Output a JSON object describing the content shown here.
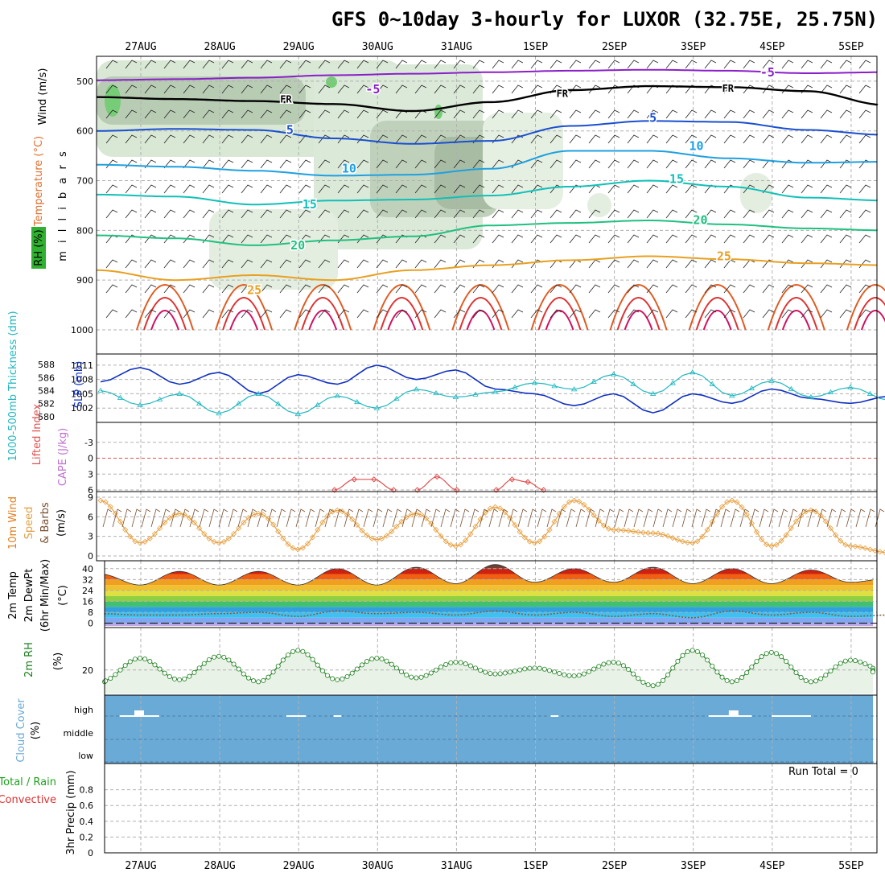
{
  "title": "GFS 0~10day 3-hourly for LUXOR (32.75E, 25.75N)",
  "run_total": "Run Total = 0",
  "colors": {
    "temp_purple": "#8a1fc8",
    "temp_blue": "#1a4fd0",
    "temp_cyan": "#1fa0e0",
    "temp_teal": "#10c0b8",
    "temp_green": "#20c080",
    "temp_orange": "#e8a020",
    "temp_red": "#e03030",
    "slp": "#1030c0",
    "thickness": "#20b8c0",
    "cloud": "#6aaad6",
    "rh_fill": "#e8f2e6",
    "rh_line": "#208020",
    "wind_line": "#e8a040",
    "li_line": "#e05050"
  },
  "chart_data": [
    {
      "type": "line",
      "panel": "upper-air cross-section",
      "ylabel": "m i l l i b a r s",
      "y_ticks": [
        "500",
        "600",
        "700",
        "800",
        "900",
        "1000"
      ],
      "ylim": [
        450,
        1000
      ],
      "x_dates": [
        "27AUG",
        "28AUG",
        "29AUG",
        "30AUG",
        "31AUG",
        "1SEP",
        "2SEP",
        "3SEP",
        "4SEP",
        "5SEP"
      ],
      "legend": {
        "rh": "RH (%)",
        "temp": "Temperature (°C)",
        "wind": "Wind (m/s)"
      },
      "isotherm_labels": [
        {
          "text": "-5",
          "day": 8.5,
          "p": 482
        },
        {
          "text": "-5",
          "day": 3.5,
          "p": 516
        },
        {
          "text": "FR",
          "day": 2.4,
          "p": 535
        },
        {
          "text": "FR",
          "day": 5.9,
          "p": 524
        },
        {
          "text": "FR",
          "day": 8.0,
          "p": 513
        },
        {
          "text": "5",
          "day": 2.45,
          "p": 598
        },
        {
          "text": "5",
          "day": 7.05,
          "p": 574
        },
        {
          "text": "10",
          "day": 3.2,
          "p": 676
        },
        {
          "text": "10",
          "day": 7.6,
          "p": 630
        },
        {
          "text": "15",
          "day": 2.7,
          "p": 748
        },
        {
          "text": "15",
          "day": 7.35,
          "p": 697
        },
        {
          "text": "20",
          "day": 2.55,
          "p": 830
        },
        {
          "text": "20",
          "day": 7.65,
          "p": 779
        },
        {
          "text": "25",
          "day": 2.0,
          "p": 920
        },
        {
          "text": "25",
          "day": 7.95,
          "p": 852
        }
      ],
      "isotherms": [
        {
          "name": "-5",
          "color": "#8a1fc8",
          "days": [
            0,
            1,
            2,
            3,
            4,
            5,
            6,
            7,
            8,
            9,
            10
          ],
          "p": [
            498,
            496,
            493,
            488,
            485,
            482,
            479,
            477,
            479,
            484,
            482
          ]
        },
        {
          "name": "FR",
          "color": "#000000",
          "days": [
            0,
            1,
            2,
            3,
            4,
            5,
            6,
            7,
            8,
            9,
            10
          ],
          "p": [
            532,
            536,
            540,
            546,
            560,
            542,
            518,
            510,
            512,
            520,
            548
          ]
        },
        {
          "name": "5",
          "color": "#1a4fd0",
          "days": [
            0,
            1,
            2,
            3,
            4,
            5,
            6,
            7,
            8,
            9,
            10
          ],
          "p": [
            600,
            596,
            598,
            615,
            626,
            620,
            590,
            580,
            582,
            598,
            608
          ]
        },
        {
          "name": "10",
          "color": "#1fa0e0",
          "days": [
            0,
            1,
            2,
            3,
            4,
            5,
            6,
            7,
            8,
            9,
            10
          ],
          "p": [
            668,
            672,
            680,
            690,
            688,
            676,
            640,
            640,
            655,
            664,
            662
          ]
        },
        {
          "name": "15",
          "color": "#10c0b8",
          "days": [
            0,
            1,
            2,
            3,
            4,
            5,
            6,
            7,
            8,
            9,
            10
          ],
          "p": [
            728,
            732,
            748,
            740,
            738,
            730,
            712,
            700,
            712,
            734,
            740
          ]
        },
        {
          "name": "20",
          "color": "#20c080",
          "days": [
            0,
            1,
            2,
            3,
            4,
            5,
            6,
            7,
            8,
            9,
            10
          ],
          "p": [
            810,
            816,
            830,
            820,
            812,
            790,
            785,
            780,
            788,
            796,
            800
          ]
        },
        {
          "name": "25",
          "color": "#e8a020",
          "days": [
            0,
            1,
            2,
            3,
            4,
            5,
            6,
            7,
            8,
            9,
            10
          ],
          "p": [
            880,
            900,
            890,
            900,
            880,
            870,
            860,
            852,
            858,
            866,
            870
          ]
        }
      ]
    },
    {
      "type": "line",
      "panel": "thickness and SLP",
      "left_label": "1000-500mb Thickness (dm)",
      "right_label": "SLP (mb)",
      "left_ticks": [
        "588",
        "586",
        "584",
        "582",
        "580"
      ],
      "right_ticks": [
        "1011",
        "1008",
        "1005",
        "1002"
      ],
      "ylim_slp": [
        999.5,
        1012.5
      ],
      "ylim_thickness": [
        579.5,
        589
      ],
      "days": [
        0,
        0.5,
        1,
        1.5,
        2,
        2.5,
        3,
        3.5,
        4,
        4.5,
        5,
        5.5,
        6,
        6.5,
        7,
        7.5,
        8,
        8.5,
        9,
        9.5,
        10
      ],
      "slp": [
        1007.5,
        1010.5,
        1007.0,
        1009.5,
        1005.0,
        1009.0,
        1007.0,
        1011.0,
        1008.0,
        1010.0,
        1006.0,
        1005.0,
        1002.5,
        1005.0,
        1001.0,
        1005.0,
        1003.0,
        1006.0,
        1004.0,
        1003.0,
        1004.5
      ],
      "thickness": [
        584.0,
        581.8,
        583.5,
        580.5,
        583.5,
        580.4,
        583.2,
        581.3,
        584.2,
        583.0,
        583.8,
        585.2,
        584.2,
        586.5,
        583.5,
        586.8,
        583.2,
        585.5,
        583.0,
        584.5,
        582.5
      ]
    },
    {
      "type": "line",
      "panel": "lifted index and CAPE",
      "left_label": "Lifted Index",
      "right_label": "CAPE (J/kg)",
      "y_ticks": [
        "-3",
        "0",
        "3",
        "6"
      ],
      "ylim": [
        -6,
        6
      ],
      "li_segments": [
        {
          "days": [
            2.25,
            2.5,
            2.75,
            3.0
          ],
          "values": [
            6.0,
            4.0,
            4.0,
            6.0
          ]
        },
        {
          "days": [
            3.3,
            3.55,
            3.8
          ],
          "values": [
            6.0,
            3.5,
            6.0
          ]
        },
        {
          "days": [
            4.3,
            4.5,
            4.7,
            4.9
          ],
          "values": [
            6.0,
            4.0,
            4.5,
            6.0
          ]
        }
      ]
    },
    {
      "type": "line",
      "panel": "10m wind",
      "ylabel": "10m Wind Speed & Barbs (m/s)",
      "y_ticks": [
        "9",
        "6",
        "3",
        "0"
      ],
      "ylim": [
        0,
        9
      ],
      "days": [
        0,
        0.5,
        1,
        1.5,
        2,
        2.5,
        3,
        3.5,
        4,
        4.5,
        5,
        5.5,
        6,
        6.5,
        7,
        7.5,
        8,
        8.5,
        9,
        9.5,
        10
      ],
      "speed": [
        8.5,
        2.0,
        6.5,
        2.0,
        6.5,
        1.0,
        7.0,
        2.5,
        6.5,
        1.5,
        7.5,
        2.0,
        8.5,
        4.0,
        3.5,
        2.0,
        8.5,
        1.5,
        7.0,
        1.5,
        0.5
      ]
    },
    {
      "type": "area",
      "panel": "2m temperature and dewpoint",
      "ylabel": "2m Temp 2m DewPt (6hr Min/Max) (°C)",
      "y_ticks": [
        "40",
        "32",
        "24",
        "16",
        "8",
        "0"
      ],
      "ylim": [
        -2,
        44
      ],
      "days": [
        0,
        0.5,
        1,
        1.5,
        2,
        2.5,
        3,
        3.5,
        4,
        4.5,
        5,
        5.5,
        6,
        6.5,
        7,
        7.5,
        8,
        8.5,
        9,
        9.5,
        10
      ],
      "temp": [
        36,
        28,
        38,
        28,
        38,
        28,
        40,
        28,
        41,
        29,
        43,
        30,
        40,
        30,
        41,
        29,
        40,
        29,
        39,
        30,
        33
      ],
      "dewpt": [
        7,
        6,
        6,
        7,
        8,
        5,
        9,
        7,
        8,
        6,
        9,
        6,
        8,
        5,
        7,
        4,
        9,
        6,
        8,
        5,
        6
      ]
    },
    {
      "type": "area",
      "panel": "2m relative humidity",
      "ylabel": "2m RH (%)",
      "y_ticks": [
        "20"
      ],
      "ylim": [
        8,
        40
      ],
      "days": [
        0,
        0.5,
        1,
        1.5,
        2,
        2.5,
        3,
        3.5,
        4,
        4.5,
        5,
        5.5,
        6,
        6.5,
        7,
        7.5,
        8,
        8.5,
        9,
        9.5,
        10
      ],
      "rh": [
        14,
        26,
        15,
        27,
        14,
        30,
        15,
        26,
        16,
        24,
        18,
        21,
        17,
        24,
        12,
        30,
        14,
        29,
        14,
        25,
        19
      ]
    },
    {
      "type": "table",
      "panel": "cloud cover",
      "ylabel": "Cloud Cover (%)",
      "levels": [
        "high",
        "middle",
        "low"
      ],
      "high_cloud_spans": [
        [
          0.14,
          0.64
        ],
        [
          2.25,
          2.5
        ],
        [
          2.85,
          2.95
        ],
        [
          5.6,
          5.7
        ],
        [
          7.6,
          8.15
        ],
        [
          8.4,
          8.9
        ]
      ]
    },
    {
      "type": "line",
      "panel": "3hr precipitation",
      "ylabel": "3hr Precip (mm)",
      "legend_total": "Total / Rain",
      "legend_conv": "Convective",
      "y_ticks": [
        "0.8",
        "0.6",
        "0.4",
        "0.2",
        "0"
      ],
      "ylim": [
        0,
        1.0
      ],
      "values": []
    }
  ]
}
